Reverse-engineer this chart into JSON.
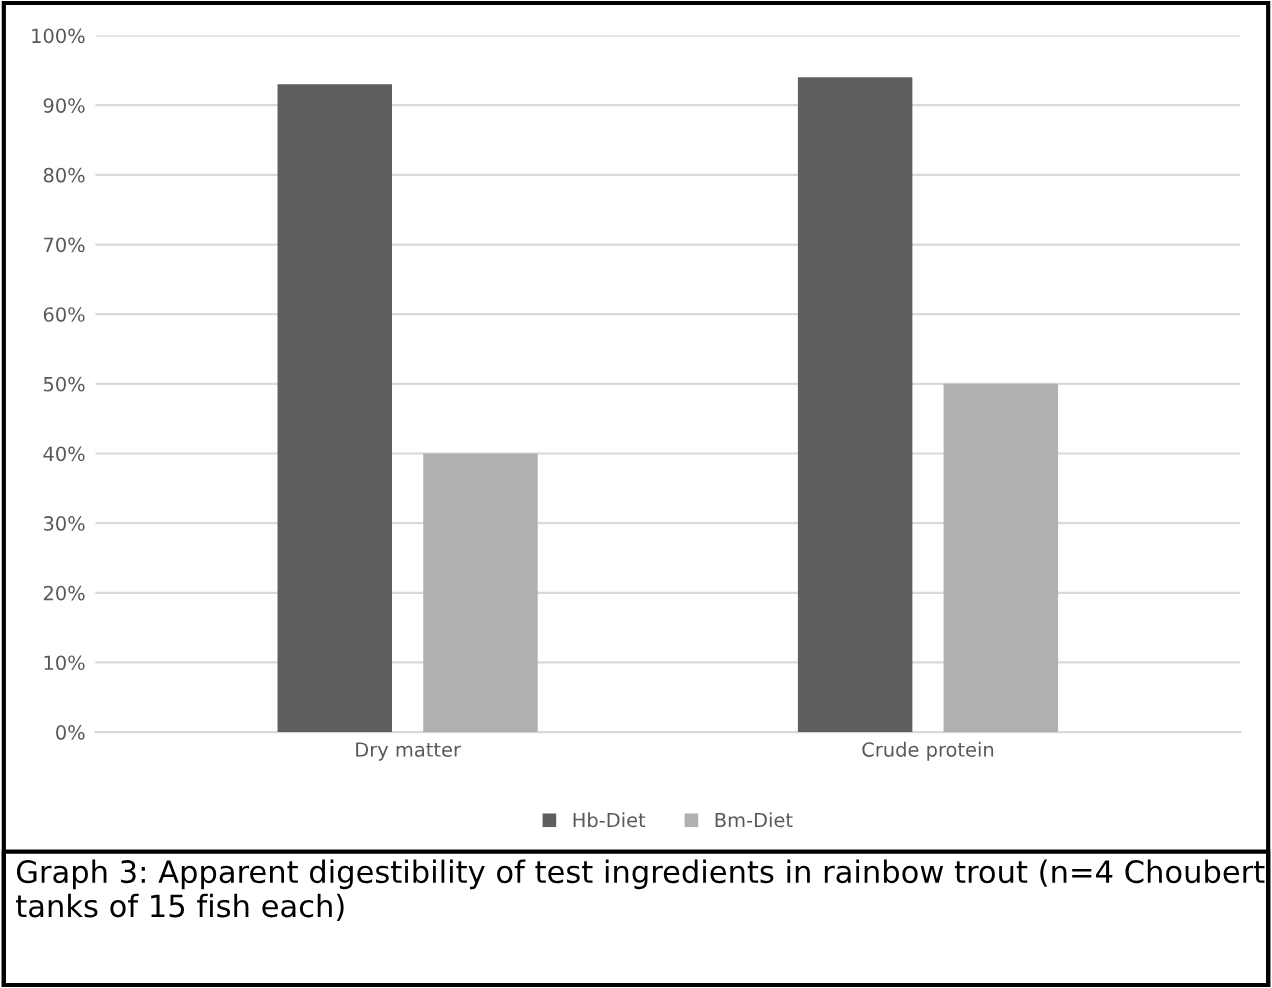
{
  "chart_data": {
    "type": "bar",
    "categories": [
      "Dry matter",
      "Crude protein"
    ],
    "series": [
      {
        "name": "Hb-Diet",
        "color": "#5f5f5f",
        "values": [
          93,
          94
        ]
      },
      {
        "name": "Bm-Diet",
        "color": "#b0b0b0",
        "values": [
          40,
          50
        ]
      }
    ],
    "ylim": [
      0,
      100
    ],
    "yticks": [
      {
        "value": 0,
        "label": "0%"
      },
      {
        "value": 10,
        "label": "10%"
      },
      {
        "value": 20,
        "label": "20%"
      },
      {
        "value": 30,
        "label": "30%"
      },
      {
        "value": 40,
        "label": "40%"
      },
      {
        "value": 50,
        "label": "50%"
      },
      {
        "value": 60,
        "label": "60%"
      },
      {
        "value": 70,
        "label": "70%"
      },
      {
        "value": 80,
        "label": "80%"
      },
      {
        "value": 90,
        "label": "90%"
      },
      {
        "value": 100,
        "label": "100%"
      }
    ],
    "grid": "y",
    "legend": "bottom",
    "annotations": [
      "Graph 3: Apparent digestibility of test ingredients in rainbow trout (n=4 Choubert tanks of 15 fish each)"
    ]
  }
}
